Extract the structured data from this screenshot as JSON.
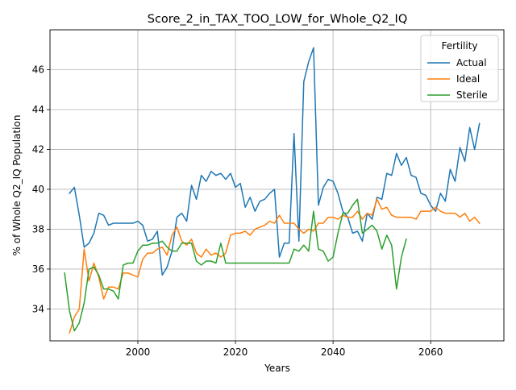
{
  "chart_data": {
    "type": "line",
    "title": "Score_2_in_TAX_TOO_LOW_for_Whole_Q2_IQ",
    "xlabel": "Years",
    "ylabel": "% of Whole Q2_IQ Population",
    "xlim": [
      1982,
      2075
    ],
    "ylim": [
      32.4,
      48.0
    ],
    "xticks": [
      2000,
      2020,
      2040,
      2060
    ],
    "yticks": [
      34,
      36,
      38,
      40,
      42,
      44,
      46
    ],
    "grid": true,
    "legend": {
      "title": "Fertility",
      "placement": "upper right"
    },
    "series": [
      {
        "name": "Actual",
        "color": "#1f77b4",
        "x": [
          1986,
          1987,
          1988,
          1989,
          1990,
          1991,
          1992,
          1993,
          1994,
          1995,
          1996,
          1997,
          1998,
          1999,
          2000,
          2001,
          2002,
          2003,
          2004,
          2005,
          2006,
          2007,
          2008,
          2009,
          2010,
          2011,
          2012,
          2013,
          2014,
          2015,
          2016,
          2017,
          2018,
          2019,
          2020,
          2021,
          2022,
          2023,
          2024,
          2025,
          2026,
          2027,
          2028,
          2029,
          2030,
          2031,
          2032,
          2033,
          2034,
          2035,
          2036,
          2037,
          2038,
          2039,
          2040,
          2041,
          2042,
          2043,
          2044,
          2045,
          2046,
          2047,
          2048,
          2049,
          2050,
          2051,
          2052,
          2053,
          2054,
          2055,
          2056,
          2057,
          2058,
          2059,
          2060,
          2061,
          2062,
          2063,
          2064,
          2065,
          2066,
          2067,
          2068,
          2069,
          2070
        ],
        "y": [
          39.8,
          40.1,
          38.7,
          37.1,
          37.3,
          37.8,
          38.8,
          38.7,
          38.2,
          38.3,
          38.3,
          38.3,
          38.3,
          38.3,
          38.4,
          38.2,
          37.4,
          37.5,
          37.9,
          35.7,
          36.1,
          36.9,
          38.6,
          38.8,
          38.4,
          40.2,
          39.5,
          40.7,
          40.4,
          40.9,
          40.7,
          40.8,
          40.5,
          40.8,
          40.1,
          40.3,
          39.1,
          39.6,
          38.9,
          39.4,
          39.5,
          39.8,
          40.0,
          36.6,
          37.3,
          37.3,
          42.8,
          37.4,
          45.4,
          46.4,
          47.1,
          39.2,
          40.1,
          40.5,
          40.4,
          39.8,
          38.9,
          38.6,
          37.8,
          37.9,
          37.4,
          38.8,
          38.5,
          39.6,
          39.5,
          40.8,
          40.7,
          41.8,
          41.2,
          41.6,
          40.7,
          40.6,
          39.8,
          39.7,
          39.2,
          38.9,
          39.8,
          39.4,
          41.0,
          40.4,
          42.1,
          41.4,
          43.1,
          42.0,
          43.3
        ]
      },
      {
        "name": "Ideal",
        "color": "#ff7f0e",
        "x": [
          1986,
          1987,
          1988,
          1989,
          1990,
          1991,
          1992,
          1993,
          1994,
          1995,
          1996,
          1997,
          1998,
          1999,
          2000,
          2001,
          2002,
          2003,
          2004,
          2005,
          2006,
          2007,
          2008,
          2009,
          2010,
          2011,
          2012,
          2013,
          2014,
          2015,
          2016,
          2017,
          2018,
          2019,
          2020,
          2021,
          2022,
          2023,
          2024,
          2025,
          2026,
          2027,
          2028,
          2029,
          2030,
          2031,
          2032,
          2033,
          2034,
          2035,
          2036,
          2037,
          2038,
          2039,
          2040,
          2041,
          2042,
          2043,
          2044,
          2045,
          2046,
          2047,
          2048,
          2049,
          2050,
          2051,
          2052,
          2053,
          2054,
          2055,
          2056,
          2057,
          2058,
          2059,
          2060,
          2061,
          2062,
          2063,
          2064,
          2065,
          2066,
          2067,
          2068,
          2069,
          2070
        ],
        "y": [
          32.8,
          33.6,
          34.0,
          37.0,
          35.4,
          36.3,
          35.6,
          34.5,
          35.1,
          35.1,
          35.0,
          35.8,
          35.8,
          35.7,
          35.6,
          36.5,
          36.8,
          36.8,
          37.0,
          37.1,
          36.7,
          37.7,
          38.1,
          37.4,
          37.2,
          37.5,
          36.8,
          36.6,
          37.0,
          36.7,
          36.8,
          36.6,
          36.8,
          37.7,
          37.8,
          37.8,
          37.9,
          37.7,
          38.0,
          38.1,
          38.2,
          38.4,
          38.3,
          38.7,
          38.3,
          38.3,
          38.3,
          38.0,
          37.8,
          38.0,
          37.9,
          38.3,
          38.3,
          38.6,
          38.6,
          38.5,
          38.7,
          38.6,
          38.6,
          38.9,
          38.5,
          38.8,
          38.7,
          39.5,
          39.0,
          39.1,
          38.7,
          38.6,
          38.6,
          38.6,
          38.6,
          38.5,
          38.9,
          38.9,
          38.9,
          39.1,
          38.9,
          38.8,
          38.8,
          38.8,
          38.6,
          38.8,
          38.4,
          38.6,
          38.3
        ]
      },
      {
        "name": "Sterile",
        "color": "#2ca02c",
        "x": [
          1985,
          1986,
          1987,
          1988,
          1989,
          1990,
          1991,
          1992,
          1993,
          1994,
          1995,
          1996,
          1997,
          1998,
          1999,
          2000,
          2001,
          2002,
          2003,
          2004,
          2005,
          2006,
          2007,
          2008,
          2009,
          2010,
          2011,
          2012,
          2013,
          2014,
          2015,
          2016,
          2017,
          2018,
          2019,
          2020,
          2021,
          2022,
          2023,
          2024,
          2025,
          2026,
          2027,
          2028,
          2029,
          2030,
          2031,
          2032,
          2033,
          2034,
          2035,
          2036,
          2037,
          2038,
          2039,
          2040,
          2041,
          2042,
          2043,
          2044,
          2045,
          2046,
          2047,
          2048,
          2049,
          2050,
          2051,
          2052,
          2053,
          2054,
          2055
        ],
        "y": [
          35.8,
          33.9,
          32.9,
          33.3,
          34.3,
          36.0,
          36.1,
          35.7,
          35.0,
          35.0,
          34.9,
          34.5,
          36.2,
          36.3,
          36.3,
          36.9,
          37.2,
          37.2,
          37.3,
          37.3,
          37.4,
          37.1,
          36.9,
          36.9,
          37.3,
          37.3,
          37.3,
          36.4,
          36.2,
          36.4,
          36.4,
          36.3,
          37.3,
          36.3,
          36.3,
          36.3,
          36.3,
          36.3,
          36.3,
          36.3,
          36.3,
          36.3,
          36.3,
          36.3,
          36.3,
          36.3,
          36.3,
          37.0,
          36.9,
          37.2,
          36.9,
          38.9,
          37.0,
          36.9,
          36.4,
          36.6,
          37.8,
          38.8,
          38.8,
          39.2,
          39.5,
          37.8,
          38.0,
          38.2,
          37.9,
          37.0,
          37.7,
          37.2,
          35.0,
          36.6,
          37.5
        ]
      }
    ]
  }
}
